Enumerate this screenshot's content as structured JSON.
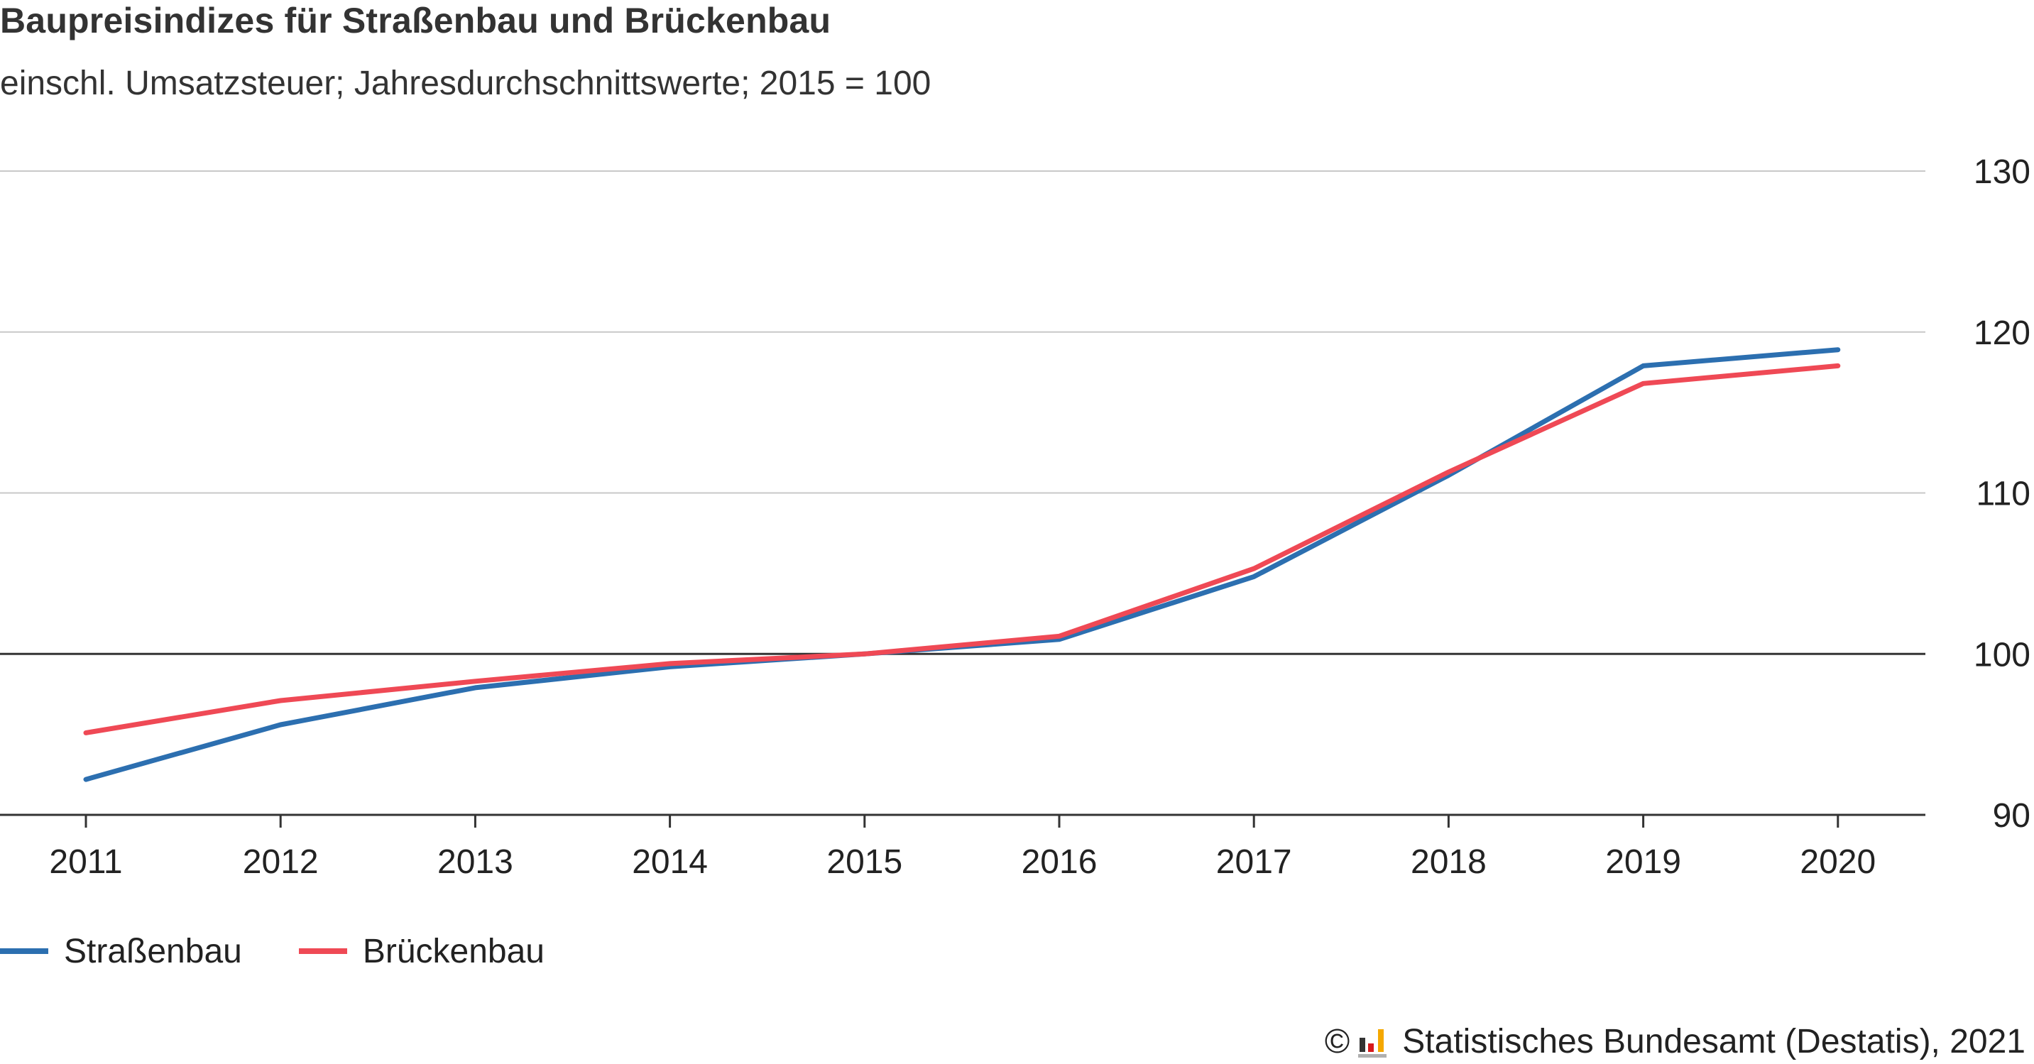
{
  "title": "Baupreisindizes für Straßenbau und Brückenbau",
  "subtitle": "einschl. Umsatzsteuer; Jahresdurchschnittswerte; 2015 = 100",
  "footer": {
    "copyright_symbol": "©",
    "source": "Statistisches Bundesamt (Destatis), 2021",
    "logo_icon": "destatis-logo-icon",
    "logo_colors": [
      "#333333",
      "#d7191c",
      "#f5a800",
      "#b0b0b0"
    ]
  },
  "chart_data": {
    "type": "line",
    "x": [
      "2011",
      "2012",
      "2013",
      "2014",
      "2015",
      "2016",
      "2017",
      "2018",
      "2019",
      "2020"
    ],
    "series": [
      {
        "name": "Straßenbau",
        "color": "#2c6fb0",
        "values": [
          92.2,
          95.6,
          97.9,
          99.2,
          100.0,
          100.9,
          104.8,
          111.1,
          117.9,
          118.9
        ]
      },
      {
        "name": "Brückenbau",
        "color": "#ef4955",
        "values": [
          95.1,
          97.1,
          98.3,
          99.4,
          100.0,
          101.1,
          105.3,
          111.3,
          116.8,
          117.9
        ]
      }
    ],
    "y_ticks": [
      90,
      100,
      110,
      120,
      130
    ],
    "ylim": [
      90,
      130
    ],
    "baseline": 100,
    "y_axis_position": "right",
    "grid": true,
    "legend_position": "bottom-left"
  }
}
